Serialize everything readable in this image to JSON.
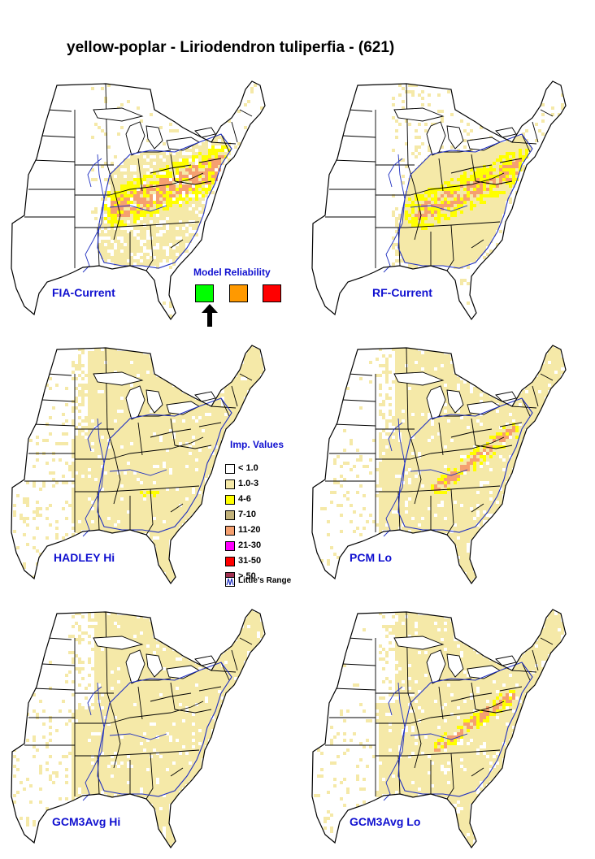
{
  "title": "yellow-poplar - Liriodendron tuliperfia - (621)",
  "maps": [
    {
      "label": "FIA-Current",
      "pattern": "fia"
    },
    {
      "label": "RF-Current",
      "pattern": "rf"
    },
    {
      "label": "HADLEY Hi",
      "pattern": "hadley"
    },
    {
      "label": "PCM Lo",
      "pattern": "pcm"
    },
    {
      "label": "GCM3Avg Hi",
      "pattern": "gcmhi"
    },
    {
      "label": "GCM3Avg Lo",
      "pattern": "gcmlo"
    }
  ],
  "reliability": {
    "title": "Model Reliability",
    "levels": [
      {
        "color": "#00ff00",
        "selected": true
      },
      {
        "color": "#ff9900",
        "selected": false
      },
      {
        "color": "#ff0000",
        "selected": false
      }
    ]
  },
  "legend": {
    "title": "Imp. Values",
    "items": [
      {
        "label": "< 1.0",
        "color": "#ffffff"
      },
      {
        "label": "1.0-3",
        "color": "#f5e9a8"
      },
      {
        "label": "4-6",
        "color": "#ffff00"
      },
      {
        "label": "7-10",
        "color": "#c2b27a"
      },
      {
        "label": "11-20",
        "color": "#f5a070"
      },
      {
        "label": "21-30",
        "color": "#ff00ff"
      },
      {
        "label": "31-50",
        "color": "#ff0000"
      },
      {
        "label": "> 50",
        "color": "#a03050"
      }
    ],
    "range_label": "Little's Range"
  },
  "colors": {
    "label": "#1010d0",
    "range": "#2030c0",
    "border": "#000000"
  }
}
